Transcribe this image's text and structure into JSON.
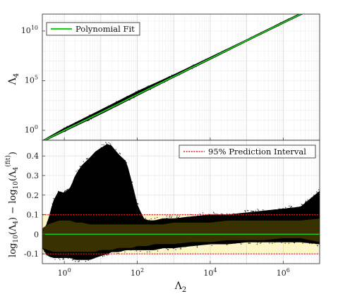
{
  "chart_data": [
    {
      "type": "scatter",
      "panel": "top",
      "x_scale": "log",
      "y_scale": "log",
      "xlim": [
        0.25,
        10000000
      ],
      "ylim": [
        0.1,
        500000000000.0
      ],
      "ylabel_base": "Λ",
      "ylabel_sub": "4",
      "y_ticks": [
        {
          "value": 1,
          "base": "10",
          "exp": "0"
        },
        {
          "value": 100000,
          "base": "10",
          "exp": "5"
        },
        {
          "value": 10000000000,
          "base": "10",
          "exp": "10"
        }
      ],
      "grid": true,
      "legend": {
        "position": "top-left",
        "entries": [
          "Polynomial Fit"
        ]
      },
      "series": [
        {
          "name": "Polynomial Fit",
          "kind": "line",
          "color": "#22cc22",
          "x": [
            0.25,
            1,
            10,
            100,
            1000,
            10000,
            100000,
            1000000,
            10000000
          ],
          "y": [
            0.08,
            1,
            60,
            4000,
            260000,
            17000000,
            1100000000,
            70000000000,
            4000000000000
          ]
        },
        {
          "name": "data",
          "kind": "scatter-band",
          "color": "#000000",
          "x": [
            0.25,
            1,
            10,
            100,
            1000,
            10000,
            100000,
            1000000,
            10000000
          ],
          "y_low": [
            0.07,
            0.8,
            45,
            3200,
            220000,
            14000000,
            950000000,
            60000000000,
            3500000000000
          ],
          "y_high": [
            0.09,
            1.6,
            110,
            8000,
            380000,
            22000000,
            1300000000,
            85000000000,
            5000000000000
          ]
        }
      ]
    },
    {
      "type": "scatter",
      "panel": "bottom",
      "x_scale": "log",
      "y_scale": "linear",
      "xlim": [
        0.25,
        10000000
      ],
      "ylim": [
        -0.15,
        0.48
      ],
      "xlabel_base": "Λ",
      "xlabel_sub": "2",
      "ylabel": "log10(Λ4) − log10(Λ4(fit))",
      "ylabel_parts": {
        "a": "log",
        "a_sub": "10",
        "b": "(Λ",
        "b_sub": "4",
        "c": ") − log",
        "c_sub": "10",
        "d": "(Λ",
        "d_sub": "4",
        "d_sup": "(fit)",
        "e": ")"
      },
      "x_ticks": [
        {
          "value": 1,
          "base": "10",
          "exp": "0"
        },
        {
          "value": 100,
          "base": "10",
          "exp": "2"
        },
        {
          "value": 10000,
          "base": "10",
          "exp": "4"
        },
        {
          "value": 1000000,
          "base": "10",
          "exp": "6"
        }
      ],
      "y_ticks": [
        {
          "value": -0.1,
          "label": "-0.1"
        },
        {
          "value": 0,
          "label": "0"
        },
        {
          "value": 0.1,
          "label": "0.1"
        },
        {
          "value": 0.2,
          "label": "0.2"
        },
        {
          "value": 0.3,
          "label": "0.3"
        },
        {
          "value": 0.4,
          "label": "0.4"
        }
      ],
      "grid": true,
      "legend": {
        "position": "top-right",
        "entries": [
          "95% Prediction Interval"
        ]
      },
      "prediction_interval": [
        -0.1,
        0.1
      ],
      "fit_line": 0,
      "band_fill": "#fff8c4",
      "colors": {
        "data": "#000000",
        "fit": "#22cc22",
        "interval": "#dd2222",
        "dense": "#3a3100"
      },
      "envelope": {
        "x": [
          0.25,
          0.35,
          0.5,
          0.7,
          1,
          1.5,
          2,
          3,
          5,
          7,
          10,
          15,
          20,
          30,
          50,
          70,
          100,
          150,
          200,
          300,
          500,
          1000,
          3000,
          10000,
          30000,
          100000,
          300000,
          1000000,
          3000000,
          10000000
        ],
        "upper": [
          0.01,
          0.06,
          0.17,
          0.22,
          0.21,
          0.24,
          0.3,
          0.35,
          0.39,
          0.42,
          0.44,
          0.46,
          0.45,
          0.41,
          0.37,
          0.27,
          0.15,
          0.08,
          0.07,
          0.07,
          0.08,
          0.08,
          0.09,
          0.1,
          0.1,
          0.11,
          0.12,
          0.13,
          0.14,
          0.22
        ],
        "lower": [
          -0.07,
          -0.11,
          -0.12,
          -0.12,
          -0.12,
          -0.12,
          -0.13,
          -0.13,
          -0.13,
          -0.12,
          -0.11,
          -0.1,
          -0.09,
          -0.09,
          -0.08,
          -0.08,
          -0.08,
          -0.08,
          -0.08,
          -0.08,
          -0.07,
          -0.07,
          -0.06,
          -0.05,
          -0.05,
          -0.04,
          -0.04,
          -0.04,
          -0.04,
          -0.05
        ],
        "dense_upper": [
          0.03,
          0.05,
          0.06,
          0.07,
          0.07,
          0.07,
          0.06,
          0.06,
          0.05,
          0.05,
          0.05,
          0.05,
          0.05,
          0.05,
          0.05,
          0.05,
          0.05,
          0.05,
          0.05,
          0.05,
          0.05,
          0.06,
          0.06,
          0.06,
          0.07,
          0.07,
          0.07,
          0.07,
          0.07,
          0.08
        ],
        "dense_lower": [
          -0.07,
          -0.08,
          -0.09,
          -0.09,
          -0.09,
          -0.09,
          -0.09,
          -0.09,
          -0.09,
          -0.09,
          -0.08,
          -0.08,
          -0.08,
          -0.07,
          -0.07,
          -0.07,
          -0.06,
          -0.06,
          -0.06,
          -0.05,
          -0.05,
          -0.05,
          -0.04,
          -0.04,
          -0.03,
          -0.03,
          -0.03,
          -0.02,
          -0.02,
          -0.04
        ]
      }
    }
  ]
}
